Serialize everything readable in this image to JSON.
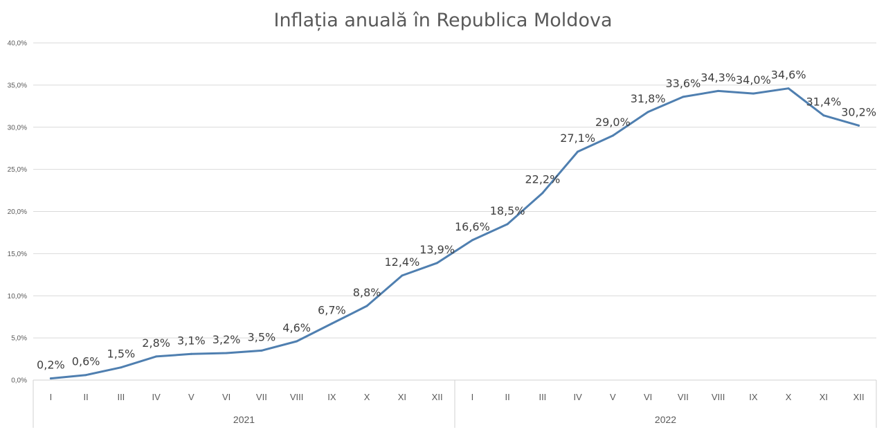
{
  "chart_data": {
    "type": "line",
    "title": "Inflația anuală în Republica Moldova",
    "xlabel": "",
    "ylabel": "",
    "ylim": [
      0,
      40
    ],
    "y_ticks": [
      "0,0%",
      "5,0%",
      "10,0%",
      "15,0%",
      "20,0%",
      "25,0%",
      "30,0%",
      "35,0%",
      "40,0%"
    ],
    "y_tick_values": [
      0,
      5,
      10,
      15,
      20,
      25,
      30,
      35,
      40
    ],
    "grid": true,
    "groups": [
      {
        "label": "2021",
        "categories": [
          "I",
          "II",
          "III",
          "IV",
          "V",
          "VI",
          "VII",
          "VIII",
          "IX",
          "X",
          "XI",
          "XII"
        ]
      },
      {
        "label": "2022",
        "categories": [
          "I",
          "II",
          "III",
          "IV",
          "V",
          "VI",
          "VII",
          "VIII",
          "IX",
          "X",
          "XI",
          "XII"
        ]
      }
    ],
    "series": [
      {
        "color": "#4f7fb0",
        "values": [
          0.2,
          0.6,
          1.5,
          2.8,
          3.1,
          3.2,
          3.5,
          4.6,
          6.7,
          8.8,
          12.4,
          13.9,
          16.6,
          18.5,
          22.2,
          27.1,
          29.0,
          31.8,
          33.6,
          34.3,
          34.0,
          34.6,
          31.4,
          30.2
        ],
        "labels": [
          "0,2%",
          "0,6%",
          "1,5%",
          "2,8%",
          "3,1%",
          "3,2%",
          "3,5%",
          "4,6%",
          "6,7%",
          "8,8%",
          "12,4%",
          "13,9%",
          "16,6%",
          "18,5%",
          "22,2%",
          "27,1%",
          "29,0%",
          "31,8%",
          "33,6%",
          "34,3%",
          "34,0%",
          "34,6%",
          "31,4%",
          "30,2%"
        ]
      }
    ]
  }
}
